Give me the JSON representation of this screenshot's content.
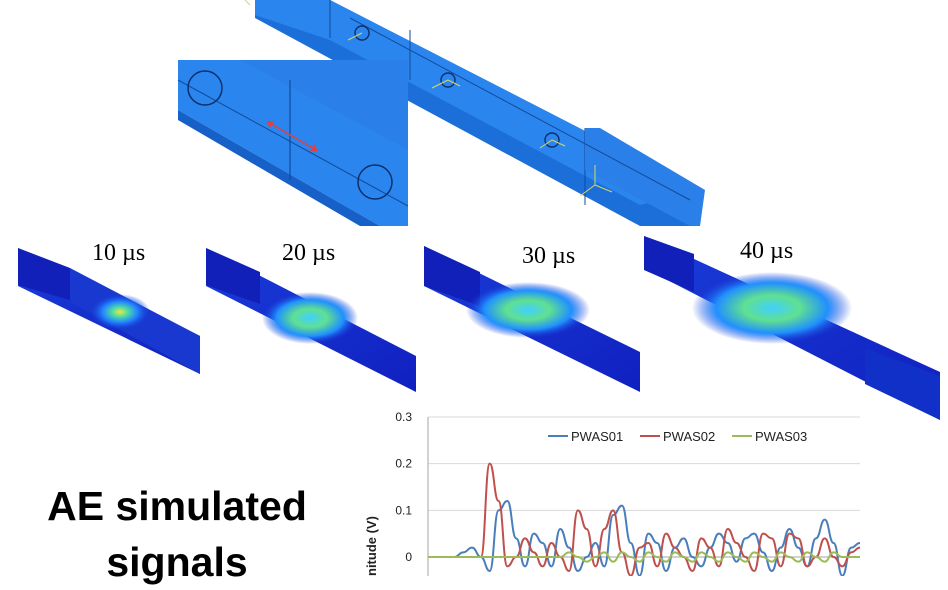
{
  "snapshots": [
    {
      "time_label": "10 µs"
    },
    {
      "time_label": "20 µs"
    },
    {
      "time_label": "30 µs"
    },
    {
      "time_label": "40 µs"
    }
  ],
  "caption": {
    "line1": "AE simulated",
    "line2": "signals"
  },
  "colors": {
    "model_blue": "#1f7fe0",
    "field_dark": "#1420c8",
    "arrow_red": "#e04040"
  },
  "chart_data": {
    "type": "line",
    "ylabel": "Amplitude (V)",
    "ylabel_visible": "nitude (V)",
    "ylim": [
      -0.0,
      0.3
    ],
    "yticks": [
      "0.3",
      "0.2",
      "0.1",
      "0"
    ],
    "grid": true,
    "legend": "top",
    "series": [
      {
        "name": "PWAS01",
        "color": "#4a7ebb",
        "values": [
          0,
          0,
          0,
          0,
          0.01,
          0.02,
          0.0,
          -0.03,
          0.1,
          0.12,
          0.04,
          -0.02,
          0.05,
          0.03,
          -0.02,
          0.06,
          0.02,
          -0.03,
          0.0,
          0.03,
          -0.02,
          0.09,
          0.11,
          0.03,
          -0.04,
          0.05,
          0.03,
          -0.03,
          0.02,
          0.04,
          0.0,
          -0.02,
          0.02,
          0.05,
          0.03,
          -0.01,
          0.04,
          0.05,
          0.01,
          -0.03,
          0.02,
          0.06,
          0.02,
          -0.02,
          0.04,
          0.08,
          0.03,
          -0.04,
          0.02,
          0.03
        ]
      },
      {
        "name": "PWAS02",
        "color": "#c0504d",
        "values": [
          0,
          0,
          0,
          0,
          0,
          0,
          0,
          0.2,
          0.12,
          -0.02,
          0.0,
          0.04,
          0.01,
          -0.02,
          0.03,
          0.0,
          -0.03,
          0.1,
          0.06,
          -0.02,
          0.06,
          0.1,
          0.01,
          -0.04,
          0.02,
          0.03,
          -0.02,
          0.05,
          0.02,
          0.0,
          -0.03,
          0.04,
          0.02,
          -0.02,
          0.06,
          0.03,
          0.0,
          -0.03,
          0.05,
          0.04,
          -0.02,
          0.05,
          0.04,
          -0.02,
          0.0,
          0.04,
          0.0,
          -0.02,
          0.01,
          0.02
        ]
      },
      {
        "name": "PWAS03",
        "color": "#9bbb59",
        "values": [
          0,
          0,
          0,
          0,
          0,
          0,
          0,
          0,
          0,
          0,
          0,
          0,
          0,
          0,
          0,
          0,
          0.01,
          0,
          -0.01,
          0,
          0.01,
          -0.01,
          0.01,
          0,
          -0.01,
          0.01,
          0,
          -0.01,
          0.01,
          0,
          -0.01,
          0.01,
          0.0,
          -0.01,
          0.01,
          0,
          -0.01,
          0.01,
          0.0,
          -0.01,
          0.01,
          0.0,
          -0.01,
          0.01,
          0,
          -0.01,
          0.01,
          0,
          0,
          0
        ]
      }
    ]
  }
}
